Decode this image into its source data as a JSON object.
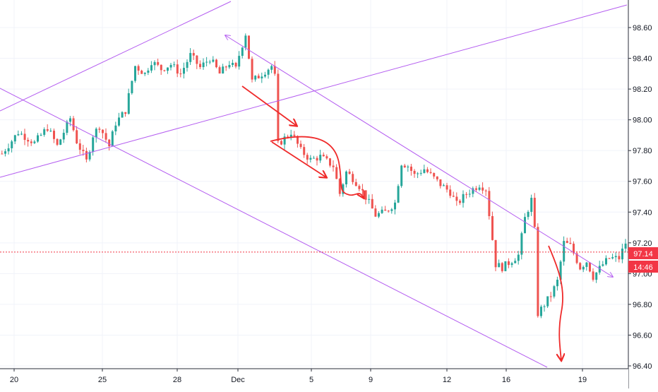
{
  "chart_data": {
    "type": "candlestick",
    "x_tick_labels": [
      "20",
      "25",
      "28",
      "Dec",
      "5",
      "9",
      "12",
      "16",
      "19"
    ],
    "y_tick_labels": [
      "98.60",
      "98.40",
      "98.20",
      "98.00",
      "97.80",
      "97.60",
      "97.40",
      "97.20",
      "97.00",
      "96.80",
      "96.60",
      "96.40"
    ],
    "ylim": [
      96.38,
      98.75
    ],
    "current_price": {
      "value": "97.14",
      "countdown": "14:46",
      "color": "#f23645"
    },
    "colors": {
      "up": "#26a69a",
      "down": "#ef5350",
      "channel": "#b45df0",
      "arrow": "#ef2a2a",
      "price_line": "#f23645"
    },
    "grid": true,
    "price_path": [
      [
        0,
        97.78
      ],
      [
        5,
        97.92
      ],
      [
        10,
        97.85
      ],
      [
        14,
        97.95
      ],
      [
        17,
        97.83
      ],
      [
        21,
        98.01
      ],
      [
        23,
        97.86
      ],
      [
        26,
        97.73
      ],
      [
        28,
        97.9
      ],
      [
        30,
        97.96
      ],
      [
        33,
        97.83
      ],
      [
        35,
        97.98
      ],
      [
        38,
        98.06
      ],
      [
        41,
        98.35
      ],
      [
        44,
        98.3
      ],
      [
        46,
        98.38
      ],
      [
        49,
        98.33
      ],
      [
        52,
        98.36
      ],
      [
        55,
        98.3
      ],
      [
        58,
        98.42
      ],
      [
        61,
        98.34
      ],
      [
        64,
        98.4
      ],
      [
        67,
        98.3
      ],
      [
        70,
        98.37
      ],
      [
        72,
        98.33
      ],
      [
        73,
        98.42
      ],
      [
        75,
        98.56
      ],
      [
        77,
        98.25
      ],
      [
        80,
        98.3
      ],
      [
        83,
        98.35
      ],
      [
        84,
        98.28
      ],
      [
        85,
        97.84
      ],
      [
        87,
        97.88
      ],
      [
        89,
        97.92
      ],
      [
        92,
        97.8
      ],
      [
        95,
        97.74
      ],
      [
        98,
        97.76
      ],
      [
        102,
        97.7
      ],
      [
        104,
        97.52
      ],
      [
        106,
        97.66
      ],
      [
        108,
        97.62
      ],
      [
        110,
        97.57
      ],
      [
        113,
        97.46
      ],
      [
        115,
        97.38
      ],
      [
        118,
        97.4
      ],
      [
        121,
        97.46
      ],
      [
        123,
        97.72
      ],
      [
        125,
        97.7
      ],
      [
        127,
        97.64
      ],
      [
        130,
        97.68
      ],
      [
        133,
        97.62
      ],
      [
        135,
        97.58
      ],
      [
        138,
        97.53
      ],
      [
        140,
        97.45
      ],
      [
        143,
        97.52
      ],
      [
        147,
        97.58
      ],
      [
        149,
        97.55
      ],
      [
        152,
        97.06
      ],
      [
        154,
        97.04
      ],
      [
        156,
        97.07
      ],
      [
        159,
        97.12
      ],
      [
        161,
        97.36
      ],
      [
        163,
        97.48
      ],
      [
        164,
        97.28
      ],
      [
        165,
        96.74
      ],
      [
        167,
        96.8
      ],
      [
        169,
        96.86
      ],
      [
        171,
        96.95
      ],
      [
        173,
        97.2
      ],
      [
        175,
        97.18
      ],
      [
        178,
        97.04
      ],
      [
        180,
        97.08
      ],
      [
        182,
        96.98
      ],
      [
        185,
        97.06
      ],
      [
        187,
        97.1
      ],
      [
        190,
        97.1
      ],
      [
        192,
        97.2
      ],
      [
        193,
        97.14
      ]
    ]
  }
}
